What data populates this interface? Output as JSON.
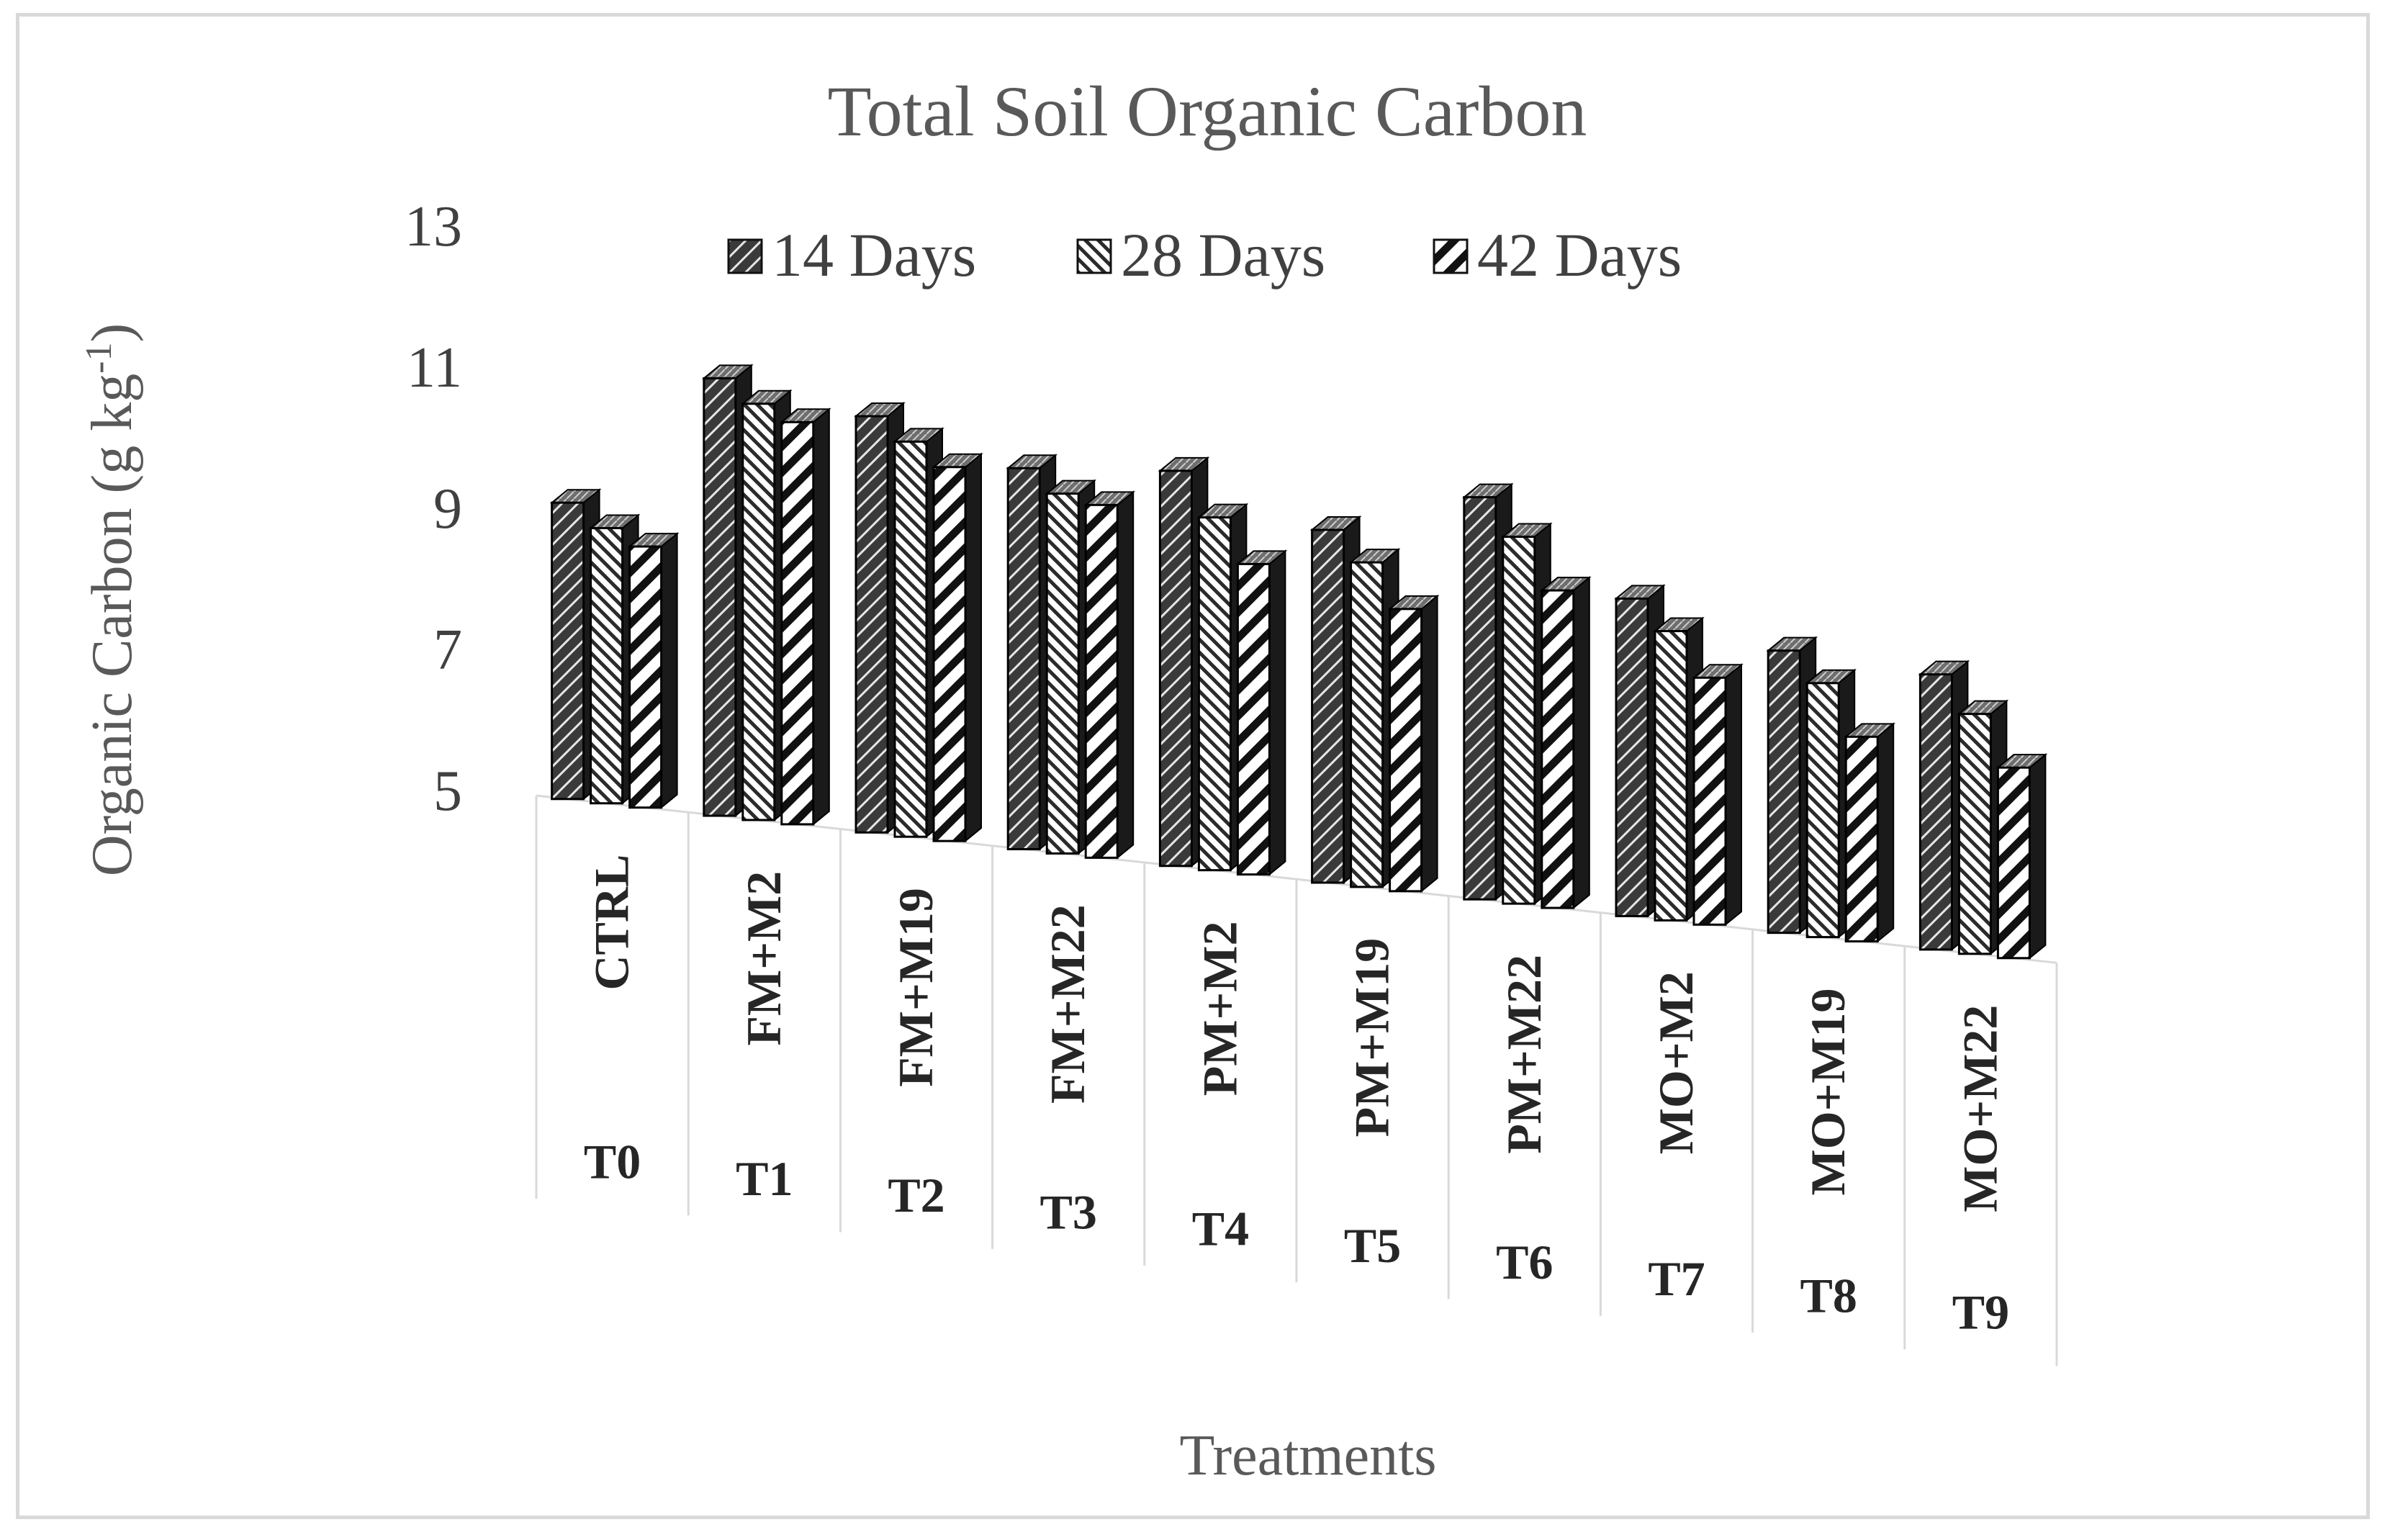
{
  "chart_data": {
    "type": "bar",
    "title": "Total Soil Organic Carbon",
    "xlabel": "Treatments",
    "ylabel": "Organic Carbon (g kg",
    "ylabel_superscript": "-1",
    "ylabel_close": ")",
    "ylim": [
      5,
      13
    ],
    "yticks": [
      "5",
      "7",
      "9",
      "11",
      "13"
    ],
    "grid": false,
    "legend_position": "top",
    "categories": [
      "CTRL",
      "FM+M2",
      "FM+M19",
      "FM+M22",
      "PM+M2",
      "PM+M19",
      "PM+M22",
      "MO+M2",
      "MO+M19",
      "MO+M22"
    ],
    "treatment_codes": [
      "T0",
      "T1",
      "T2",
      "T3",
      "T4",
      "T5",
      "T6",
      "T7",
      "T8",
      "T9"
    ],
    "series": [
      {
        "name": "14 Days",
        "values": [
          9.2,
          11.2,
          10.9,
          10.4,
          10.6,
          10.0,
          10.7,
          9.5,
          9.0,
          8.9
        ]
      },
      {
        "name": "28 Days",
        "values": [
          8.9,
          10.9,
          10.6,
          10.1,
          10.0,
          9.6,
          10.2,
          9.1,
          8.6,
          8.4
        ]
      },
      {
        "name": "42 Days",
        "values": [
          8.7,
          10.7,
          10.3,
          10.0,
          9.4,
          9.0,
          9.5,
          8.5,
          7.9,
          7.7
        ]
      }
    ]
  }
}
